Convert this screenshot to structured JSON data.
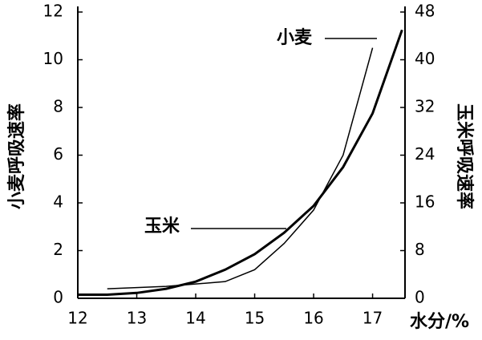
{
  "chart_data": {
    "type": "line",
    "x": [
      12,
      12.5,
      13,
      13.5,
      14,
      14.5,
      15,
      15.5,
      16,
      16.5,
      17,
      17.5
    ],
    "series": [
      {
        "name": "小麦",
        "color": "#000000",
        "values": [
          null,
          0.4,
          0.45,
          0.5,
          0.6,
          0.7,
          1.2,
          2.3,
          3.7,
          6,
          10.5,
          null
        ]
      },
      {
        "name": "玉米",
        "color": "#000000",
        "axis": "y2",
        "values": [
          0.6,
          0.6,
          0.9,
          1.6,
          2.8,
          4.8,
          7.4,
          11,
          15.5,
          22,
          31,
          45
        ]
      }
    ],
    "y_label": "小麦呼吸速率",
    "y2_label": "玉米呼吸速率",
    "x_label": "水分/%",
    "xlim": [
      12,
      17.55
    ],
    "xticks": [
      12,
      13,
      14,
      15,
      16,
      17
    ],
    "ylim": [
      0,
      12
    ],
    "yticks": [
      0,
      2,
      4,
      6,
      8,
      10,
      12
    ],
    "y2lim": [
      0,
      48
    ],
    "y2ticks": [
      0,
      8,
      16,
      24,
      32,
      40,
      48
    ]
  }
}
